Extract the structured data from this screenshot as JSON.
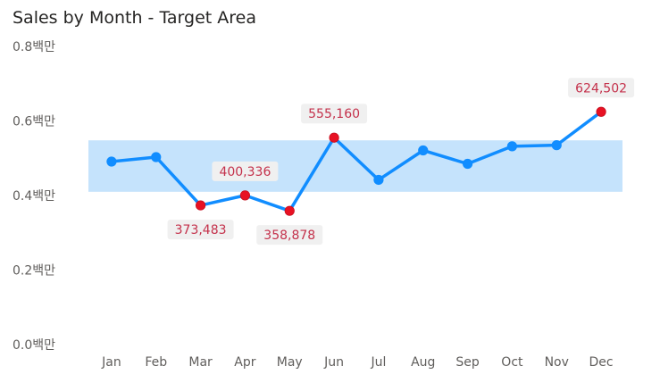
{
  "chart_data": {
    "type": "line",
    "title": "Sales by Month - Target Area",
    "xlabel": "",
    "ylabel": "",
    "categories": [
      "Jan",
      "Feb",
      "Mar",
      "Apr",
      "May",
      "Jun",
      "Jul",
      "Aug",
      "Sep",
      "Oct",
      "Nov",
      "Dec"
    ],
    "series": [
      {
        "values": [
          491000,
          503000,
          373483,
          400336,
          358878,
          555160,
          442000,
          521000,
          485000,
          532000,
          535000,
          624502
        ]
      }
    ],
    "target_band": {
      "min": 410000,
      "max": 548000
    },
    "flagged_points": [
      "Mar",
      "Apr",
      "May",
      "Jun",
      "Dec"
    ],
    "data_labels": [
      {
        "category": "Mar",
        "text": "373,483",
        "placement": "below"
      },
      {
        "category": "Apr",
        "text": "400,336",
        "placement": "above"
      },
      {
        "category": "May",
        "text": "358,878",
        "placement": "below"
      },
      {
        "category": "Jun",
        "text": "555,160",
        "placement": "above"
      },
      {
        "category": "Dec",
        "text": "624,502",
        "placement": "above"
      }
    ],
    "y_ticks": [
      {
        "value": 0,
        "label": "0.0백만"
      },
      {
        "value": 200000,
        "label": "0.2백만"
      },
      {
        "value": 400000,
        "label": "0.4백만"
      },
      {
        "value": 600000,
        "label": "0.6백만"
      },
      {
        "value": 800000,
        "label": "0.8백만"
      }
    ],
    "ylim": [
      0,
      800000
    ],
    "grid": false,
    "legend": "none",
    "colors": {
      "line": "#118dff",
      "marker": "#118dff",
      "flagged_marker": "#e81123",
      "band": "#c5e3fc",
      "label_text": "#c4314b",
      "label_bg": "#f0f0f0"
    }
  }
}
